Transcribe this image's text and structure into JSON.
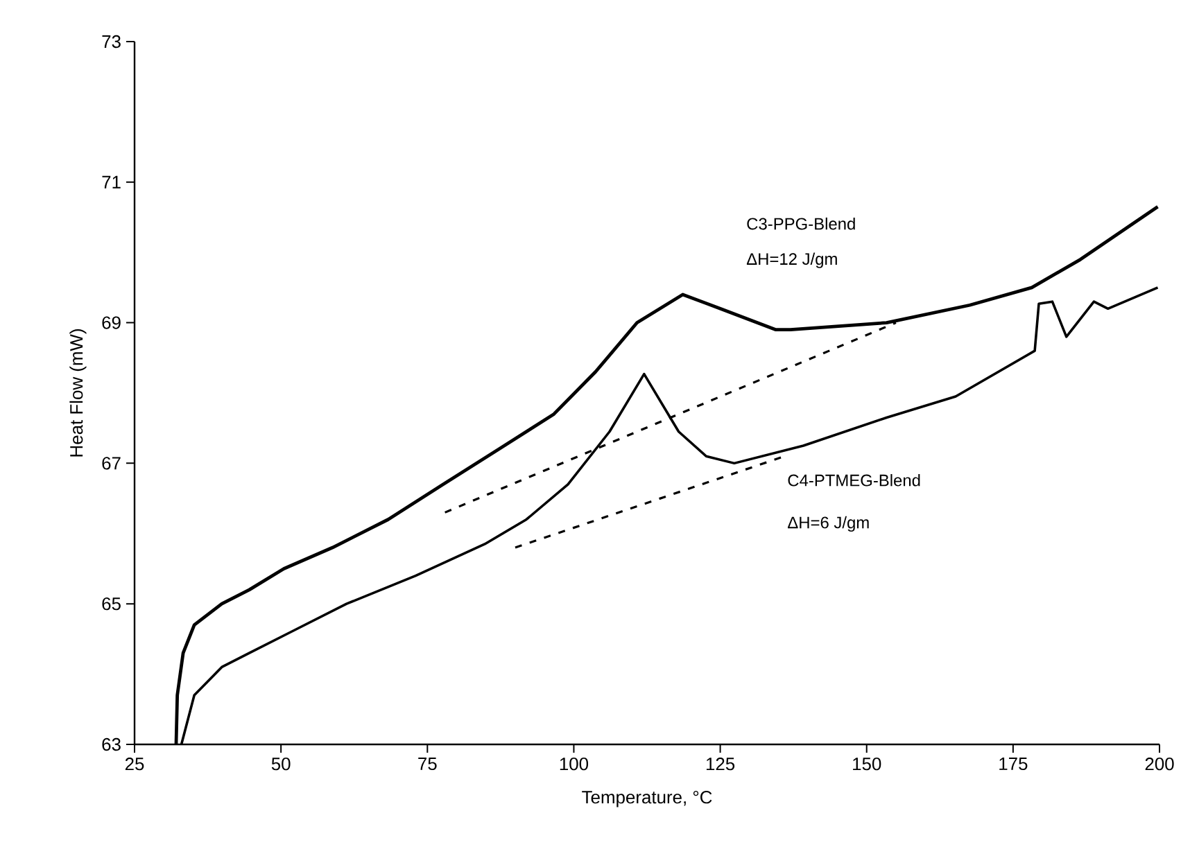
{
  "chart_data": {
    "type": "line",
    "xlabel": "Temperature, °C",
    "ylabel": "Heat Flow (mW)",
    "xlim": [
      25,
      200
    ],
    "ylim": [
      63,
      73
    ],
    "xticks": [
      25,
      50,
      75,
      100,
      125,
      150,
      175,
      200
    ],
    "yticks": [
      63,
      65,
      67,
      69,
      71,
      73
    ],
    "marker": "none",
    "series": [
      {
        "color": "#000000",
        "line_style": "solid",
        "x": [
          32.1,
          32.3,
          33.3,
          35.2,
          39.9,
          44.6,
          50.5,
          58.8,
          68.3,
          77.7,
          87.2,
          96.6,
          103.7,
          110.8,
          118.6,
          125,
          134.5,
          137,
          153.4,
          167.6,
          178.2,
          186.5,
          199.7
        ],
        "values": [
          63.0,
          63.7,
          64.3,
          64.7,
          65.0,
          65.2,
          65.5,
          65.8,
          66.2,
          66.7,
          67.2,
          67.7,
          68.3,
          69.0,
          69.4,
          69.2,
          68.9,
          68.9,
          69.0,
          69.25,
          69.5,
          69.9,
          70.65
        ]
      },
      {
        "color": "#000000",
        "line_style": "solid",
        "x": [
          33.0,
          35.2,
          39.9,
          44.6,
          51.7,
          61.2,
          73,
          84.8,
          91.9,
          99,
          106.1,
          112,
          117.9,
          122.6,
          127.4,
          139.2,
          153.4,
          165.2,
          178.7,
          179.4,
          181.7,
          184.1,
          188.8,
          191.2,
          199.7
        ],
        "values": [
          63.0,
          63.7,
          64.1,
          64.3,
          64.6,
          65.0,
          65.4,
          65.85,
          66.2,
          66.7,
          67.45,
          68.27,
          67.45,
          67.1,
          67.0,
          67.25,
          67.65,
          67.95,
          68.6,
          69.27,
          69.3,
          68.8,
          69.3,
          69.2,
          69.5
        ]
      },
      {
        "color": "#000000",
        "line_style": "dashed",
        "x": [
          78,
          155
        ],
        "values": [
          66.3,
          69.0
        ]
      },
      {
        "color": "#000000",
        "line_style": "dashed",
        "x": [
          90,
          136
        ],
        "values": [
          65.8,
          67.1
        ]
      }
    ],
    "annotations": [
      "C3-PPG-Blend",
      "ΔH=12 J/gm",
      "C4-PTMEG-Blend",
      "ΔH=6 J/gm"
    ]
  }
}
